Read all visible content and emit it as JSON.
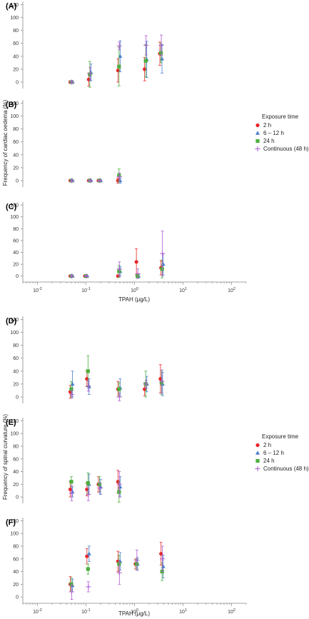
{
  "colors": {
    "2 h": "#e8262a",
    "6 – 12 h": "#4a7fd0",
    "24 h": "#4caf3e",
    "Continuous (48 h)": "#b05ad2"
  },
  "chart_data": {
    "type": "scatter",
    "x_scale": "log",
    "xlim": [
      0.005,
      200
    ],
    "ylim": [
      -10,
      125
    ],
    "y_ticks": [
      0,
      20,
      40,
      60,
      80,
      100,
      120
    ],
    "x_tick_labels": [
      "10-2",
      "10-1",
      "100",
      "101",
      "102"
    ],
    "legend_title": "Exposure time",
    "series_names": [
      "2 h",
      "6 – 12 h",
      "24 h",
      "Continuous (48 h)"
    ],
    "groups": [
      {
        "ylabel": "Frequency of cardiac oedema (%)",
        "xlabel": "TPAH (μg/L)",
        "panels": [
          {
            "label": "(A)",
            "series": [
              {
                "name": "2 h",
                "points": [
                  {
                    "x": 0.05,
                    "y": 0,
                    "err": 2
                  },
                  {
                    "x": 0.12,
                    "y": 4,
                    "err": 10
                  },
                  {
                    "x": 0.48,
                    "y": 18,
                    "err": 18
                  },
                  {
                    "x": 1.7,
                    "y": 20,
                    "err": 18
                  },
                  {
                    "x": 3.5,
                    "y": 44,
                    "err": 18
                  }
                ]
              },
              {
                "name": "6 – 12 h",
                "points": [
                  {
                    "x": 0.05,
                    "y": 0,
                    "err": 2
                  },
                  {
                    "x": 0.12,
                    "y": 15,
                    "err": 13
                  },
                  {
                    "x": 0.48,
                    "y": 40,
                    "err": 24
                  },
                  {
                    "x": 1.7,
                    "y": 35,
                    "err": 28
                  },
                  {
                    "x": 3.5,
                    "y": 36,
                    "err": 22
                  }
                ]
              },
              {
                "name": "24 h",
                "points": [
                  {
                    "x": 0.05,
                    "y": 0,
                    "err": 2
                  },
                  {
                    "x": 0.12,
                    "y": 12,
                    "err": 20
                  },
                  {
                    "x": 0.48,
                    "y": 24,
                    "err": 30
                  },
                  {
                    "x": 1.7,
                    "y": 33,
                    "err": 25
                  },
                  {
                    "x": 3.5,
                    "y": 45,
                    "err": 15
                  }
                ]
              },
              {
                "name": "Continuous (48 h)",
                "points": [
                  {
                    "x": 0.05,
                    "y": 0,
                    "err": 2
                  },
                  {
                    "x": 0.12,
                    "y": 13,
                    "err": 10
                  },
                  {
                    "x": 0.48,
                    "y": 56,
                    "err": 6
                  },
                  {
                    "x": 1.7,
                    "y": 57,
                    "err": 15
                  },
                  {
                    "x": 3.5,
                    "y": 57,
                    "err": 16
                  }
                ]
              }
            ]
          },
          {
            "label": "(B)",
            "series": [
              {
                "name": "2 h",
                "points": [
                  {
                    "x": 0.05,
                    "y": 0,
                    "err": 1
                  },
                  {
                    "x": 0.12,
                    "y": 0,
                    "err": 1
                  },
                  {
                    "x": 0.19,
                    "y": 0,
                    "err": 1
                  },
                  {
                    "x": 0.48,
                    "y": 0,
                    "err": 4
                  }
                ]
              },
              {
                "name": "6 – 12 h",
                "points": [
                  {
                    "x": 0.05,
                    "y": 0,
                    "err": 1
                  },
                  {
                    "x": 0.12,
                    "y": 0,
                    "err": 1
                  },
                  {
                    "x": 0.19,
                    "y": 0,
                    "err": 1
                  },
                  {
                    "x": 0.48,
                    "y": 0,
                    "err": 4
                  }
                ]
              },
              {
                "name": "24 h",
                "points": [
                  {
                    "x": 0.05,
                    "y": 0,
                    "err": 1
                  },
                  {
                    "x": 0.12,
                    "y": 0,
                    "err": 1
                  },
                  {
                    "x": 0.19,
                    "y": 0,
                    "err": 1
                  },
                  {
                    "x": 0.48,
                    "y": 8,
                    "err": 10
                  }
                ]
              },
              {
                "name": "Continuous (48 h)",
                "points": [
                  {
                    "x": 0.05,
                    "y": 0,
                    "err": 1
                  },
                  {
                    "x": 0.12,
                    "y": 0,
                    "err": 1
                  },
                  {
                    "x": 0.19,
                    "y": 0,
                    "err": 1
                  },
                  {
                    "x": 0.48,
                    "y": 6,
                    "err": 6
                  }
                ]
              }
            ]
          },
          {
            "label": "(C)",
            "series": [
              {
                "name": "2 h",
                "points": [
                  {
                    "x": 0.05,
                    "y": 0,
                    "err": 1
                  },
                  {
                    "x": 0.1,
                    "y": 0,
                    "err": 1
                  },
                  {
                    "x": 0.48,
                    "y": 0,
                    "err": 2
                  },
                  {
                    "x": 1.15,
                    "y": 24,
                    "err": 22
                  },
                  {
                    "x": 3.7,
                    "y": 14,
                    "err": 12
                  }
                ]
              },
              {
                "name": "6 – 12 h",
                "points": [
                  {
                    "x": 0.05,
                    "y": 0,
                    "err": 1
                  },
                  {
                    "x": 0.1,
                    "y": 0,
                    "err": 1
                  },
                  {
                    "x": 0.48,
                    "y": 8,
                    "err": 8
                  },
                  {
                    "x": 1.15,
                    "y": 0,
                    "err": 3
                  },
                  {
                    "x": 3.7,
                    "y": 20,
                    "err": 18
                  }
                ]
              },
              {
                "name": "24 h",
                "points": [
                  {
                    "x": 0.05,
                    "y": 0,
                    "err": 1
                  },
                  {
                    "x": 0.1,
                    "y": 0,
                    "err": 1
                  },
                  {
                    "x": 0.48,
                    "y": 8,
                    "err": 10
                  },
                  {
                    "x": 1.15,
                    "y": 0,
                    "err": 3
                  },
                  {
                    "x": 3.7,
                    "y": 12,
                    "err": 15
                  }
                ]
              },
              {
                "name": "Continuous (48 h)",
                "points": [
                  {
                    "x": 0.05,
                    "y": 0,
                    "err": 1
                  },
                  {
                    "x": 0.1,
                    "y": 0,
                    "err": 1
                  },
                  {
                    "x": 0.48,
                    "y": 12,
                    "err": 12
                  },
                  {
                    "x": 1.15,
                    "y": 4,
                    "err": 8
                  },
                  {
                    "x": 3.7,
                    "y": 38,
                    "err": 38
                  }
                ]
              }
            ]
          }
        ]
      },
      {
        "ylabel": "Frequency of spinal curvature (%)",
        "xlabel": "TPAH (μg/L)",
        "panels": [
          {
            "label": "(D)",
            "series": [
              {
                "name": "2 h",
                "points": [
                  {
                    "x": 0.05,
                    "y": 8,
                    "err": 10
                  },
                  {
                    "x": 0.11,
                    "y": 28,
                    "err": 12
                  },
                  {
                    "x": 0.48,
                    "y": 12,
                    "err": 12
                  },
                  {
                    "x": 1.7,
                    "y": 12,
                    "err": 10
                  },
                  {
                    "x": 3.6,
                    "y": 28,
                    "err": 22
                  }
                ]
              },
              {
                "name": "6 – 12 h",
                "points": [
                  {
                    "x": 0.05,
                    "y": 20,
                    "err": 20
                  },
                  {
                    "x": 0.11,
                    "y": 16,
                    "err": 12
                  },
                  {
                    "x": 0.48,
                    "y": 14,
                    "err": 14
                  },
                  {
                    "x": 1.7,
                    "y": 20,
                    "err": 12
                  },
                  {
                    "x": 3.6,
                    "y": 20,
                    "err": 18
                  }
                ]
              },
              {
                "name": "24 h",
                "points": [
                  {
                    "x": 0.05,
                    "y": 12,
                    "err": 12
                  },
                  {
                    "x": 0.11,
                    "y": 40,
                    "err": 24
                  },
                  {
                    "x": 0.48,
                    "y": 12,
                    "err": 10
                  },
                  {
                    "x": 1.7,
                    "y": 20,
                    "err": 20
                  },
                  {
                    "x": 3.6,
                    "y": 22,
                    "err": 18
                  }
                ]
              },
              {
                "name": "Continuous (48 h)",
                "points": [
                  {
                    "x": 0.05,
                    "y": 4,
                    "err": 6
                  },
                  {
                    "x": 0.11,
                    "y": 17,
                    "err": 8
                  },
                  {
                    "x": 0.48,
                    "y": 0,
                    "err": 6
                  },
                  {
                    "x": 1.7,
                    "y": 20,
                    "err": 6
                  },
                  {
                    "x": 3.6,
                    "y": 24,
                    "err": 18
                  }
                ]
              }
            ]
          },
          {
            "label": "(E)",
            "series": [
              {
                "name": "2 h",
                "points": [
                  {
                    "x": 0.05,
                    "y": 12,
                    "err": 12
                  },
                  {
                    "x": 0.11,
                    "y": 12,
                    "err": 10
                  },
                  {
                    "x": 0.19,
                    "y": 20,
                    "err": 12
                  },
                  {
                    "x": 0.48,
                    "y": 24,
                    "err": 18
                  }
                ]
              },
              {
                "name": "6 – 12 h",
                "points": [
                  {
                    "x": 0.05,
                    "y": 8,
                    "err": 8
                  },
                  {
                    "x": 0.11,
                    "y": 20,
                    "err": 16
                  },
                  {
                    "x": 0.19,
                    "y": 16,
                    "err": 12
                  },
                  {
                    "x": 0.48,
                    "y": 16,
                    "err": 16
                  }
                ]
              },
              {
                "name": "24 h",
                "points": [
                  {
                    "x": 0.05,
                    "y": 24,
                    "err": 8
                  },
                  {
                    "x": 0.11,
                    "y": 22,
                    "err": 16
                  },
                  {
                    "x": 0.19,
                    "y": 20,
                    "err": 12
                  },
                  {
                    "x": 0.48,
                    "y": 8,
                    "err": 16
                  }
                ]
              },
              {
                "name": "Continuous (48 h)",
                "points": [
                  {
                    "x": 0.05,
                    "y": 6,
                    "err": 12
                  },
                  {
                    "x": 0.11,
                    "y": 4,
                    "err": 10
                  },
                  {
                    "x": 0.19,
                    "y": 14,
                    "err": 8
                  },
                  {
                    "x": 0.48,
                    "y": 20,
                    "err": 20
                  }
                ]
              }
            ]
          },
          {
            "label": "(F)",
            "series": [
              {
                "name": "2 h",
                "points": [
                  {
                    "x": 0.05,
                    "y": 20,
                    "err": 12
                  },
                  {
                    "x": 0.11,
                    "y": 64,
                    "err": 12
                  },
                  {
                    "x": 0.48,
                    "y": 56,
                    "err": 16
                  },
                  {
                    "x": 1.1,
                    "y": 52,
                    "err": 8
                  },
                  {
                    "x": 3.7,
                    "y": 68,
                    "err": 18
                  }
                ]
              },
              {
                "name": "6 – 12 h",
                "points": [
                  {
                    "x": 0.05,
                    "y": 18,
                    "err": 10
                  },
                  {
                    "x": 0.11,
                    "y": 68,
                    "err": 12
                  },
                  {
                    "x": 0.48,
                    "y": 56,
                    "err": 14
                  },
                  {
                    "x": 1.1,
                    "y": 52,
                    "err": 10
                  },
                  {
                    "x": 3.7,
                    "y": 48,
                    "err": 18
                  }
                ]
              },
              {
                "name": "24 h",
                "points": [
                  {
                    "x": 0.05,
                    "y": 20,
                    "err": 10
                  },
                  {
                    "x": 0.11,
                    "y": 44,
                    "err": 8
                  },
                  {
                    "x": 0.48,
                    "y": 52,
                    "err": 14
                  },
                  {
                    "x": 1.1,
                    "y": 52,
                    "err": 8
                  },
                  {
                    "x": 3.7,
                    "y": 40,
                    "err": 14
                  }
                ]
              },
              {
                "name": "Continuous (48 h)",
                "points": [
                  {
                    "x": 0.05,
                    "y": 8,
                    "err": 12
                  },
                  {
                    "x": 0.11,
                    "y": 16,
                    "err": 8
                  },
                  {
                    "x": 0.48,
                    "y": 38,
                    "err": 18
                  },
                  {
                    "x": 1.1,
                    "y": 58,
                    "err": 16
                  },
                  {
                    "x": 3.7,
                    "y": 60,
                    "err": 20
                  }
                ]
              }
            ]
          }
        ]
      }
    ]
  }
}
